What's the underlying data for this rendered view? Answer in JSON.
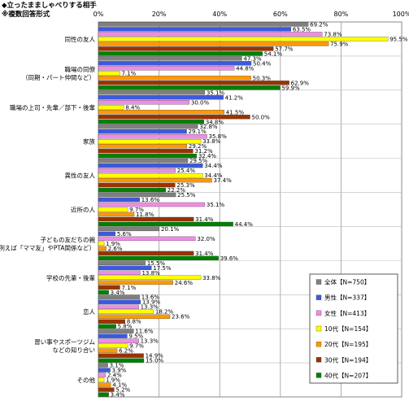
{
  "header": {
    "title": "◆立ったまましゃべりする相手",
    "subtitle": "※複数回答形式"
  },
  "chart_data": {
    "type": "bar",
    "orientation": "horizontal",
    "xlim": [
      0,
      100
    ],
    "x_ticks": [
      "0%",
      "20%",
      "40%",
      "60%",
      "80%",
      "100%"
    ],
    "grid": true,
    "legend_position": "right",
    "categories": [
      [
        "同性の友人"
      ],
      [
        "職場の同僚",
        "（同期・パート仲間など）"
      ],
      [
        "職場の上司・先輩／部下・後輩"
      ],
      [
        "家族"
      ],
      [
        "異性の友人"
      ],
      [
        "近所の人"
      ],
      [
        "子どもの友だちの親",
        "（例えば「ママ友」やPTA関係など）"
      ],
      [
        "学校の先輩・後輩"
      ],
      [
        "恋人"
      ],
      [
        "習い事やスポーツジム",
        "などの知り合い"
      ],
      [
        "その他"
      ]
    ],
    "series": [
      {
        "name": "全体【N=750】",
        "color": "#808080",
        "values": [
          69.2,
          47.3,
          35.1,
          32.8,
          29.5,
          25.5,
          20.1,
          15.5,
          13.6,
          11.6,
          3.1
        ]
      },
      {
        "name": "男性【N=337】",
        "color": "#3c5adc",
        "values": [
          63.5,
          50.4,
          41.2,
          29.1,
          34.4,
          13.6,
          5.6,
          17.5,
          13.9,
          9.5,
          3.9
        ]
      },
      {
        "name": "女性【N=413】",
        "color": "#f08ce6",
        "values": [
          73.8,
          44.8,
          30.0,
          35.8,
          25.4,
          35.1,
          32.0,
          13.8,
          13.3,
          13.3,
          2.4
        ]
      },
      {
        "name": "10代【N=154】",
        "color": "#ffff00",
        "values": [
          95.5,
          7.1,
          8.4,
          33.8,
          34.4,
          9.7,
          1.9,
          33.8,
          18.2,
          9.7,
          1.9
        ]
      },
      {
        "name": "20代【N=195】",
        "color": "#ff9900",
        "values": [
          75.9,
          50.3,
          41.5,
          29.2,
          37.4,
          11.8,
          2.6,
          24.6,
          23.6,
          6.2,
          4.1
        ]
      },
      {
        "name": "30代【N=194】",
        "color": "#993300",
        "values": [
          57.7,
          62.9,
          50.0,
          31.2,
          25.3,
          31.4,
          31.4,
          7.1,
          8.8,
          14.9,
          5.2
        ]
      },
      {
        "name": "40代【N=207】",
        "color": "#008000",
        "values": [
          54.1,
          59.9,
          34.8,
          32.4,
          22.2,
          44.4,
          39.6,
          3.4,
          5.8,
          15.0,
          3.4
        ]
      }
    ]
  }
}
